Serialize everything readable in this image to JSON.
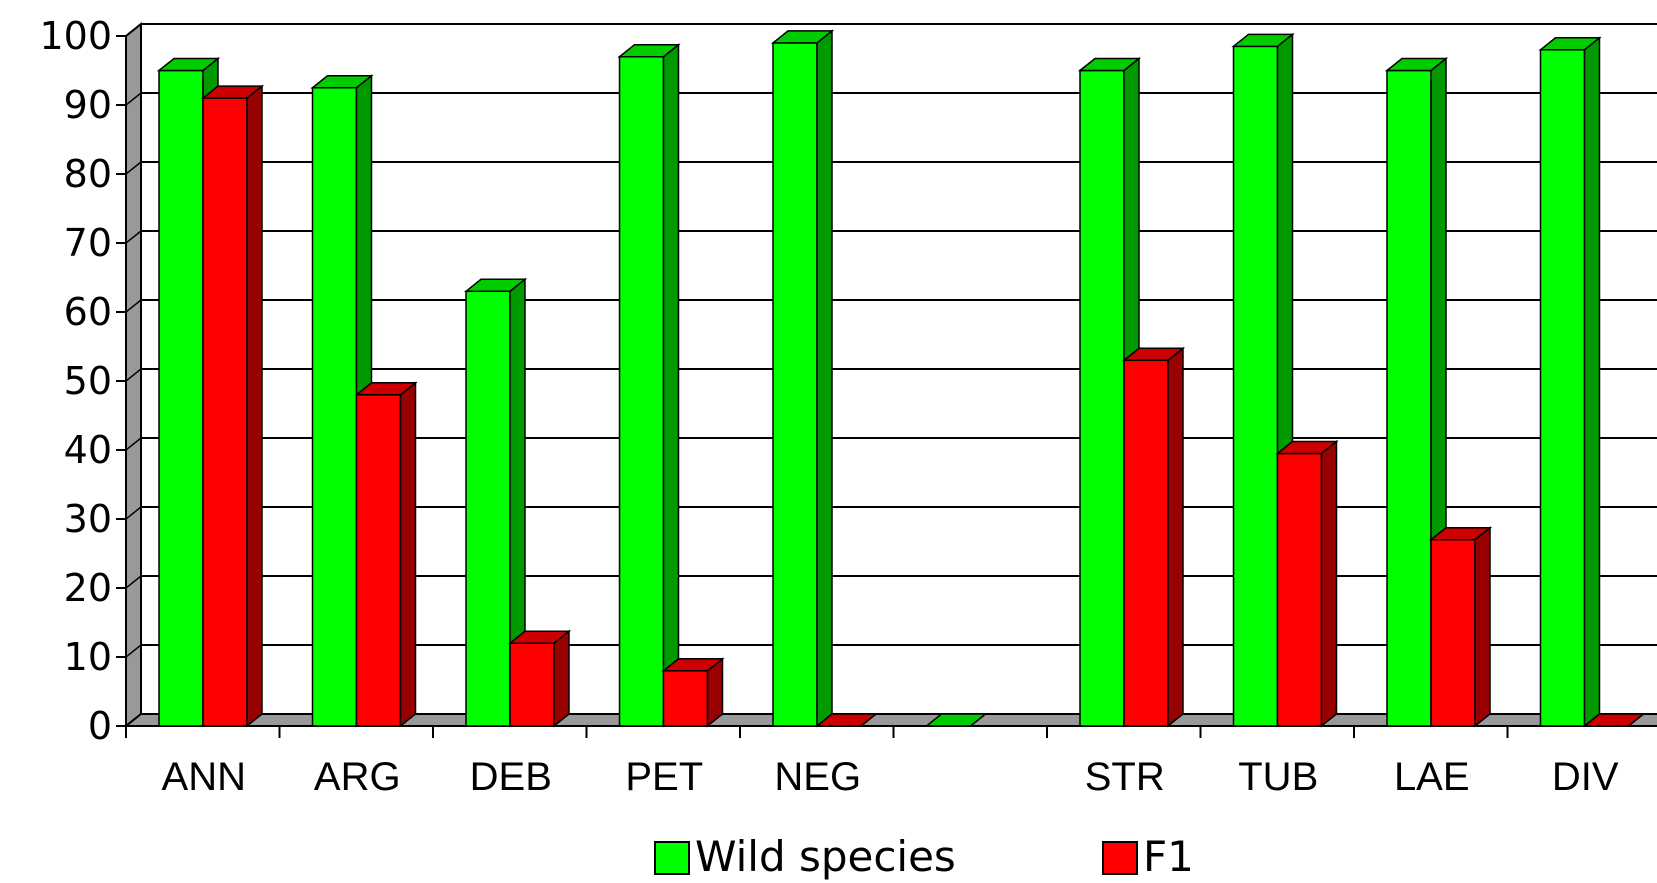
{
  "chart_data": {
    "type": "bar",
    "style": "3d-clustered",
    "categories": [
      "ANN",
      "ARG",
      "DEB",
      "PET",
      "NEG",
      "",
      "STR",
      "TUB",
      "LAE",
      "DIV"
    ],
    "series": [
      {
        "name": "Wild species",
        "color": "#00FF00",
        "side_color": "#009900",
        "top_color": "#00CC00",
        "values": [
          95,
          92.5,
          63,
          97,
          99,
          0,
          95,
          98.5,
          95,
          98
        ]
      },
      {
        "name": "F1",
        "color": "#FF0000",
        "side_color": "#990000",
        "top_color": "#CC0000",
        "values": [
          91,
          48,
          12,
          8,
          0,
          null,
          53,
          39.5,
          27,
          0
        ]
      }
    ],
    "title": "",
    "xlabel": "",
    "ylabel": "",
    "ylim": [
      0,
      100
    ],
    "yticks": [
      0,
      10,
      20,
      30,
      40,
      50,
      60,
      70,
      80,
      90,
      100
    ],
    "grid": true,
    "legend_position": "bottom"
  }
}
